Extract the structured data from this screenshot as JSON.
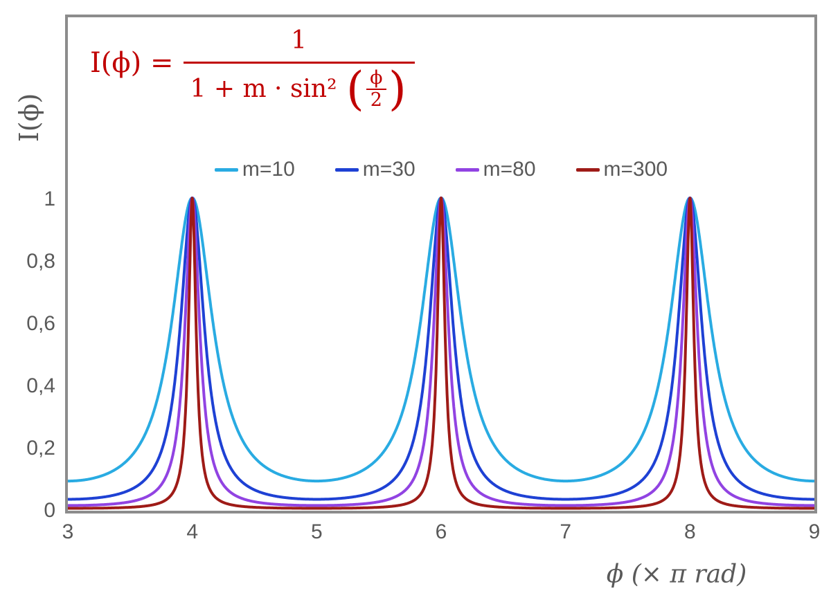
{
  "formula": {
    "lhs": "I(ϕ) =",
    "numerator": "1",
    "den_prefix": "1 + m · sin² ",
    "paren_open": "(",
    "paren_close": ")",
    "inner_num": "ϕ",
    "inner_den": "2",
    "color": "#C00000"
  },
  "chart_data": {
    "type": "line",
    "formula_text": "I(ϕ) = 1 / (1 + m · sin²(ϕ/2))",
    "function": "I(x) = 1 / (1 + m · sin²(π·x/2)), x expressed in units of π rad",
    "xlabel": "ϕ  (× π rad)",
    "ylabel": "I(ϕ)",
    "x_range": [
      3,
      9
    ],
    "y_range": [
      0,
      1
    ],
    "x_ticks": [
      "3",
      "4",
      "5",
      "6",
      "7",
      "8",
      "9"
    ],
    "y_tick_values": [
      0,
      0.2,
      0.4,
      0.6,
      0.8,
      1
    ],
    "y_tick_labels": [
      "0",
      "0,2",
      "0,4",
      "0,6",
      "0,8",
      "1"
    ],
    "grid": false,
    "legend_position": "top-center",
    "series": [
      {
        "name": "m=10",
        "m": 10,
        "color": "#29ABE2",
        "peaks_x": [
          4,
          6,
          8
        ],
        "peak_value": 1,
        "min_value": 0.091
      },
      {
        "name": "m=30",
        "m": 30,
        "color": "#1E41D4",
        "peaks_x": [
          4,
          6,
          8
        ],
        "peak_value": 1,
        "min_value": 0.032
      },
      {
        "name": "m=80",
        "m": 80,
        "color": "#9143E2",
        "peaks_x": [
          4,
          6,
          8
        ],
        "peak_value": 1,
        "min_value": 0.012
      },
      {
        "name": "m=300",
        "m": 300,
        "color": "#9E1B17",
        "peaks_x": [
          4,
          6,
          8
        ],
        "peak_value": 1,
        "min_value": 0.003
      }
    ],
    "axis_color": "#8C8C8C",
    "text_color": "#595959"
  }
}
